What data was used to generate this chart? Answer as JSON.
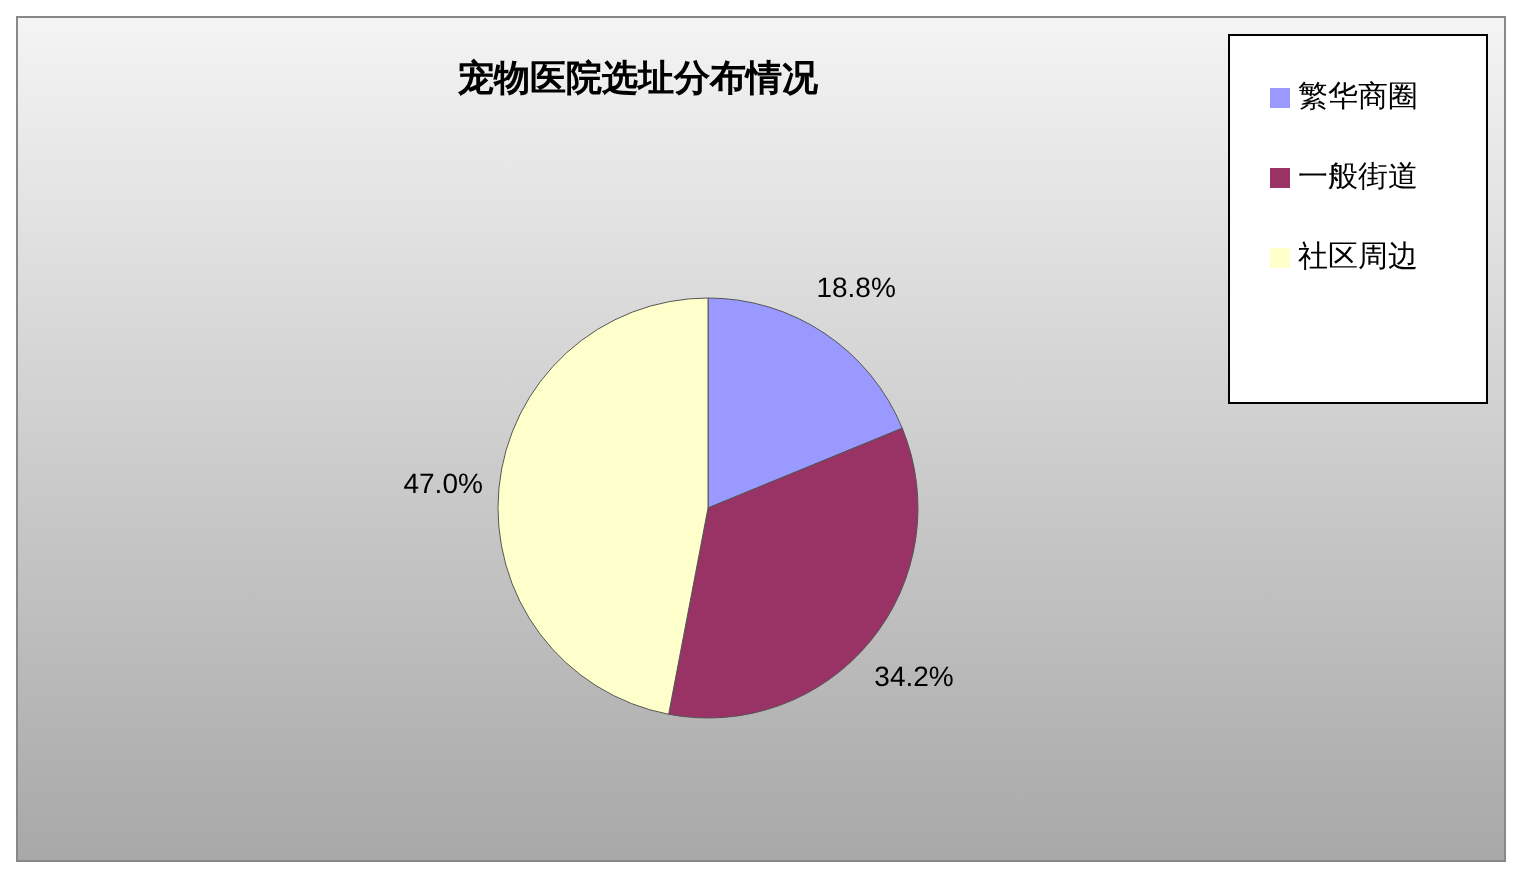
{
  "chart_data": {
    "type": "pie",
    "title": "宠物医院选址分布情况",
    "categories": [
      "繁华商圈",
      "一般街道",
      "社区周边"
    ],
    "values": [
      18.8,
      34.2,
      47.0
    ],
    "value_labels": [
      "18.8%",
      "34.2%",
      "47.0%"
    ],
    "colors": [
      "#9999ff",
      "#993366",
      "#ffffcc"
    ],
    "legend": "top right"
  }
}
